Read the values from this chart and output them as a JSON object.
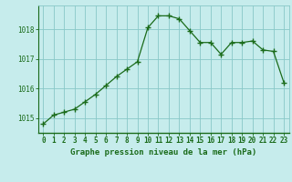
{
  "x": [
    0,
    1,
    2,
    3,
    4,
    5,
    6,
    7,
    8,
    9,
    10,
    11,
    12,
    13,
    14,
    15,
    16,
    17,
    18,
    19,
    20,
    21,
    22,
    23
  ],
  "y": [
    1014.8,
    1015.1,
    1015.2,
    1015.3,
    1015.55,
    1015.8,
    1016.1,
    1016.4,
    1016.65,
    1016.9,
    1018.05,
    1018.45,
    1018.45,
    1018.35,
    1017.95,
    1017.55,
    1017.55,
    1017.15,
    1017.55,
    1017.55,
    1017.6,
    1017.3,
    1017.25,
    1016.2
  ],
  "line_color": "#1a6b1a",
  "marker": "+",
  "marker_size": 4,
  "bg_color": "#c6ecec",
  "grid_color": "#88c8c8",
  "xlabel": "Graphe pression niveau de la mer (hPa)",
  "xlabel_color": "#1a6b1a",
  "tick_color": "#1a6b1a",
  "yticks": [
    1015,
    1016,
    1017,
    1018
  ],
  "ylim": [
    1014.5,
    1018.8
  ],
  "xlim": [
    -0.5,
    23.5
  ],
  "xtick_labels": [
    "0",
    "1",
    "2",
    "3",
    "4",
    "5",
    "6",
    "7",
    "8",
    "9",
    "10",
    "11",
    "12",
    "13",
    "14",
    "15",
    "16",
    "17",
    "18",
    "19",
    "20",
    "21",
    "22",
    "23"
  ]
}
